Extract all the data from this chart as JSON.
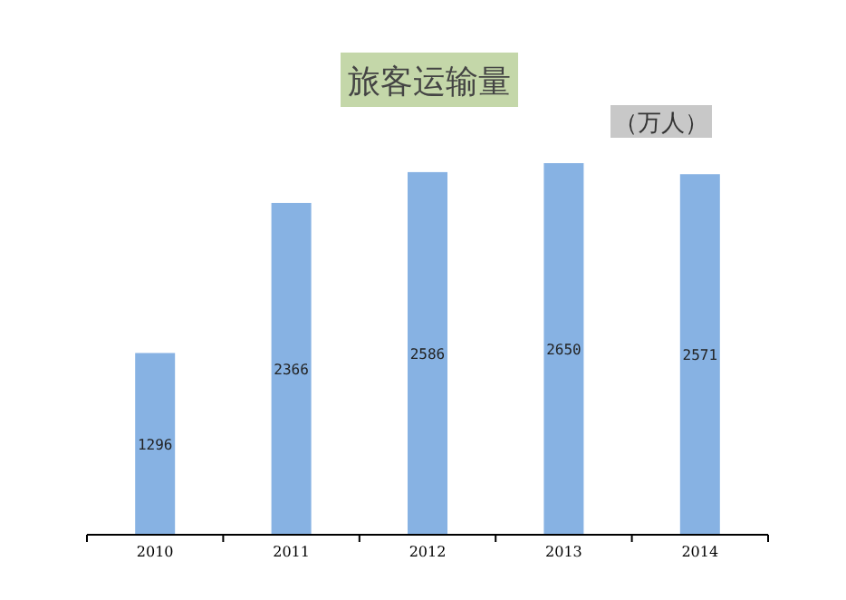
{
  "chart_data": {
    "type": "bar",
    "title": "旅客运输量",
    "subtitle": "（万人）",
    "categories": [
      "2010",
      "2011",
      "2012",
      "2013",
      "2014"
    ],
    "values": [
      1296,
      2366,
      2586,
      2650,
      2571
    ],
    "color": "#87b2e3",
    "data_labels": true
  }
}
